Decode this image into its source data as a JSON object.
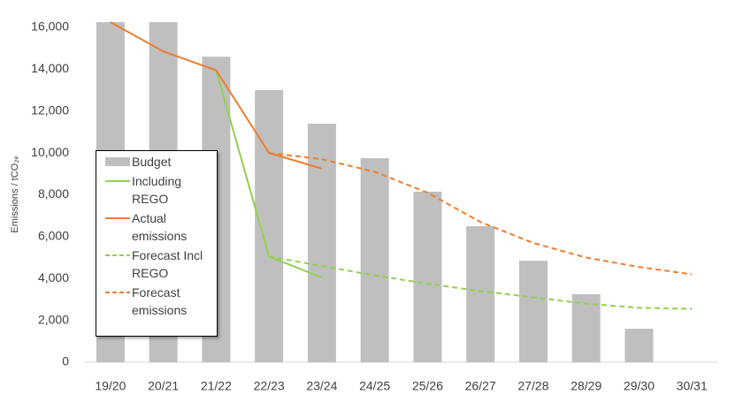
{
  "chart_data": {
    "type": "combo",
    "y_label": "Emissions / tCO₂ₑ",
    "categories": [
      "19/20",
      "20/21",
      "21/22",
      "22/23",
      "23/24",
      "24/25",
      "25/26",
      "26/27",
      "27/28",
      "28/29",
      "29/30",
      "30/31"
    ],
    "series": [
      {
        "name": "Budget",
        "type": "bar",
        "color": "#bfbfbf",
        "values": [
          16250,
          16250,
          14600,
          13000,
          11400,
          9750,
          8150,
          6500,
          4850,
          3250,
          1600,
          null
        ]
      },
      {
        "name": "Including REGO",
        "type": "line",
        "dashed": false,
        "color": "#92d050",
        "values": [
          null,
          null,
          13950,
          5050,
          4050,
          null,
          null,
          null,
          null,
          null,
          null,
          null
        ]
      },
      {
        "name": "Actual emissions",
        "type": "line",
        "dashed": false,
        "color": "#ed7d31",
        "values": [
          16250,
          14850,
          13950,
          10000,
          9250,
          null,
          null,
          null,
          null,
          null,
          null,
          null
        ]
      },
      {
        "name": "Forecast Incl REGO",
        "type": "line",
        "dashed": true,
        "color": "#92d050",
        "values": [
          null,
          null,
          null,
          5050,
          4600,
          4150,
          3750,
          3400,
          3100,
          2800,
          2600,
          2550
        ]
      },
      {
        "name": "Forecast emissions",
        "type": "line",
        "dashed": true,
        "color": "#ed7d31",
        "values": [
          null,
          null,
          null,
          10000,
          9700,
          9100,
          8100,
          6700,
          5700,
          5000,
          4550,
          4200
        ]
      }
    ],
    "ylim": [
      0,
      16000
    ],
    "yticks": [
      0,
      {
        "value": 2000,
        "label": "2,000"
      },
      {
        "value": 4000,
        "label": "4,000"
      },
      {
        "value": 6000,
        "label": "6,000"
      },
      {
        "value": 8000,
        "label": "8,000"
      },
      {
        "value": 10000,
        "label": "10,000"
      },
      {
        "value": 12000,
        "label": "12,000"
      },
      {
        "value": 14000,
        "label": "14,000"
      },
      {
        "value": 16000,
        "label": "16,000"
      }
    ],
    "legend": "left"
  }
}
